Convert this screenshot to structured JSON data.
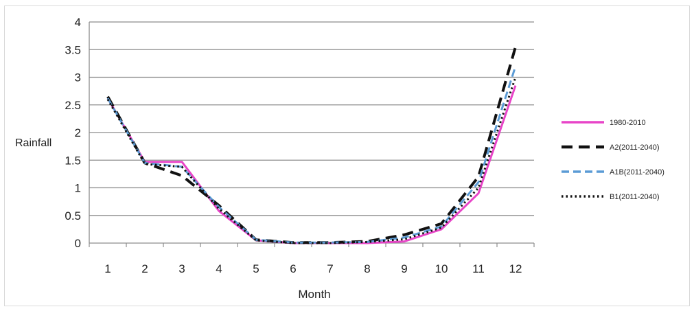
{
  "chart_data": {
    "type": "line",
    "title": "",
    "xlabel": "Month",
    "ylabel": "Rainfall",
    "categories": [
      "1",
      "2",
      "3",
      "4",
      "5",
      "6",
      "7",
      "8",
      "9",
      "10",
      "11",
      "12"
    ],
    "ylim": [
      0,
      4
    ],
    "yticks": [
      "0",
      "0.5",
      "1",
      "1.5",
      "2",
      "2.5",
      "3",
      "3.5",
      "4"
    ],
    "grid": "horizontal",
    "legend_position": "right",
    "series": [
      {
        "name": "1980-2010",
        "color": "#e845c8",
        "dash": "solid",
        "values": [
          2.62,
          1.47,
          1.47,
          0.58,
          0.05,
          0.0,
          0.0,
          0.0,
          0.03,
          0.25,
          0.9,
          2.85
        ]
      },
      {
        "name": "A2(2011-2040)",
        "color": "#111111",
        "dash": "longdash",
        "values": [
          2.65,
          1.45,
          1.22,
          0.68,
          0.06,
          0.01,
          0.01,
          0.03,
          0.15,
          0.35,
          1.2,
          3.55
        ]
      },
      {
        "name": "A1B(2011-2040)",
        "color": "#5b9bd5",
        "dash": "dash",
        "values": [
          2.62,
          1.45,
          1.38,
          0.65,
          0.06,
          0.01,
          0.01,
          0.02,
          0.1,
          0.3,
          1.1,
          3.2
        ]
      },
      {
        "name": "B1(2011-2040)",
        "color": "#111111",
        "dash": "dot",
        "values": [
          2.6,
          1.43,
          1.38,
          0.62,
          0.05,
          0.0,
          0.0,
          0.02,
          0.07,
          0.28,
          1.0,
          3.0
        ]
      }
    ]
  }
}
